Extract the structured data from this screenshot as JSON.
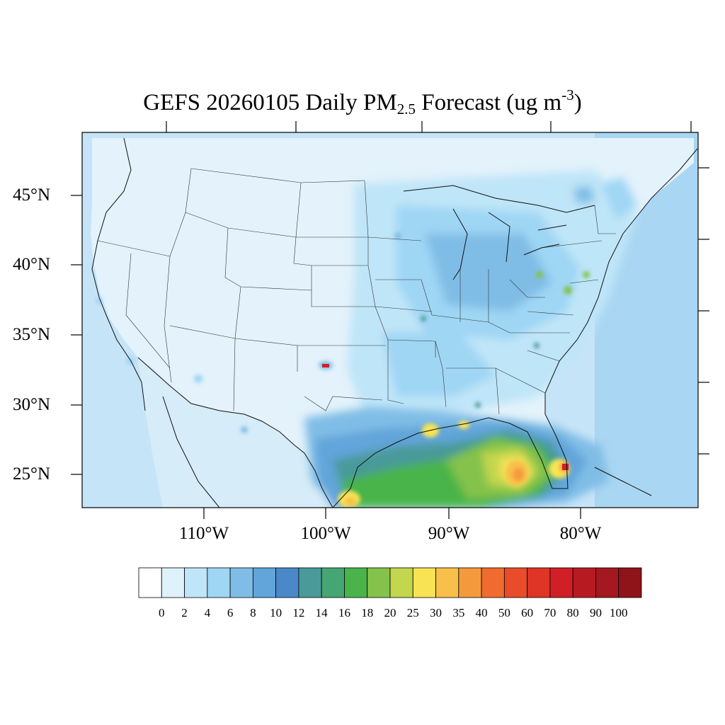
{
  "title": {
    "prefix": "GEFS 20260105 Daily PM",
    "subscript": "2.5",
    "suffix": " Forecast (ug m",
    "superscript": "-3",
    "close": ")"
  },
  "latitude_labels": [
    "45°N",
    "40°N",
    "35°N",
    "30°N",
    "25°N"
  ],
  "longitude_labels": [
    "110°W",
    "100°W",
    "90°W",
    "80°W"
  ],
  "colorbar": {
    "labels": [
      "0",
      "2",
      "4",
      "6",
      "8",
      "10",
      "12",
      "14",
      "16",
      "18",
      "20",
      "25",
      "30",
      "35",
      "40",
      "50",
      "60",
      "70",
      "80",
      "90",
      "100"
    ],
    "colors": [
      "#ffffff",
      "#dff1fb",
      "#bfe5f8",
      "#9fd6f4",
      "#80bde6",
      "#62a5da",
      "#4a88c8",
      "#4a9a9a",
      "#46a673",
      "#4ab44a",
      "#84c24c",
      "#c2d64e",
      "#f8e355",
      "#f8c04a",
      "#f49a3d",
      "#f06c2e",
      "#e84c2a",
      "#de3526",
      "#d11f28",
      "#b81a22",
      "#a4181f",
      "#8e1419"
    ]
  },
  "colors": {
    "ocean_background": "#cfe9f8",
    "land_background": "#e3f2fb",
    "hotspot_red": "#d11f28"
  }
}
